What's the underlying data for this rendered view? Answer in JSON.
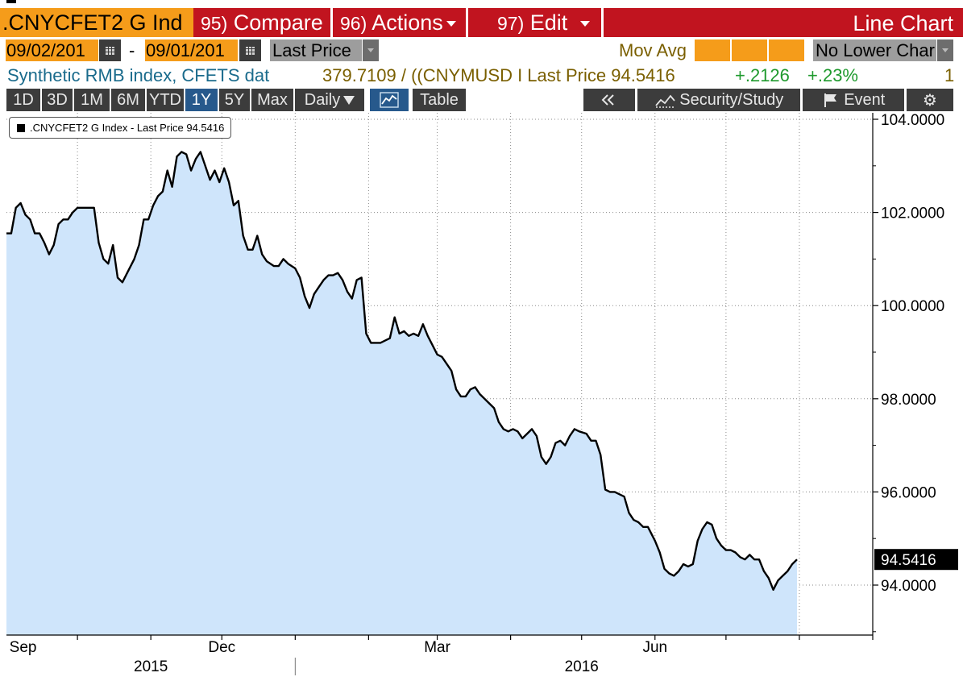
{
  "header": {
    "ticker": ".CNYCFET2 G Ind",
    "compare": {
      "num": "95)",
      "label": "Compare"
    },
    "actions": {
      "num": "96)",
      "label": "Actions"
    },
    "edit": {
      "num": "97)",
      "label": "Edit"
    },
    "title": "Line Chart"
  },
  "controls": {
    "start_date": "09/02/201",
    "end_date": "09/01/201",
    "date_separator": "-",
    "field": "Last Price",
    "mov_avg_label": "Mov Avg",
    "lower_chart": "No Lower Char"
  },
  "info": {
    "description": "Synthetic RMB index, CFETS dat",
    "formula": "379.7109 / ((CNYMUSD I Last Price 94.5416",
    "change": "+.2126",
    "change_pct": "+.23%",
    "count": "1"
  },
  "toolbar": {
    "periods": [
      "1D",
      "3D",
      "1M",
      "6M",
      "YTD",
      "1Y",
      "5Y",
      "Max"
    ],
    "active_period": "1Y",
    "frequency": "Daily",
    "table_label": "Table",
    "security_study": "Security/Study",
    "event": "Event",
    "icons": [
      "line-chart-icon",
      "double-chevron-left-icon",
      "mountain-chart-icon",
      "flag-icon",
      "gear-icon"
    ]
  },
  "colors": {
    "header_red": "#c1141f",
    "accent_orange": "#f59c1a",
    "area_fill": "#cfe5fb",
    "line": "#000000",
    "green": "#1f9a2e",
    "blue_text": "#1a6b8c"
  },
  "chart_data": {
    "type": "area",
    "legend": ".CNYCFET2 G Index - Last Price 94.5416",
    "last_value_label": "94.5416",
    "ylim": [
      92.9,
      104.2
    ],
    "yticks": [
      94,
      96,
      98,
      100,
      102,
      104
    ],
    "ytick_labels": [
      "94.0000",
      "96.0000",
      "98.0000",
      "100.0000",
      "102.0000",
      "104.0000"
    ],
    "x_start": "2015-09-01",
    "x_end": "2016-09-01",
    "month_labels": [
      {
        "label": "Sep",
        "date": "2015-09-08"
      },
      {
        "label": "Dec",
        "date": "2015-12-01"
      },
      {
        "label": "Mar",
        "date": "2016-03-01"
      },
      {
        "label": "Jun",
        "date": "2016-06-01"
      }
    ],
    "year_labels": [
      {
        "label": "2015",
        "date": "2015-11-01"
      },
      {
        "label": "2016",
        "date": "2016-05-01"
      }
    ],
    "year_divider_date": "2016-01-01",
    "gridline_dates": [
      "2015-10-01",
      "2015-11-01",
      "2015-12-01",
      "2016-01-01",
      "2016-02-01",
      "2016-03-01",
      "2016-04-01",
      "2016-05-01",
      "2016-06-01",
      "2016-07-01",
      "2016-08-01",
      "2016-09-01"
    ],
    "series": [
      {
        "values": [
          [
            "2015-09-01",
            101.55
          ],
          [
            "2015-09-03",
            101.55
          ],
          [
            "2015-09-05",
            102.1
          ],
          [
            "2015-09-07",
            102.2
          ],
          [
            "2015-09-09",
            101.95
          ],
          [
            "2015-09-11",
            101.85
          ],
          [
            "2015-09-13",
            101.55
          ],
          [
            "2015-09-15",
            101.55
          ],
          [
            "2015-09-17",
            101.35
          ],
          [
            "2015-09-19",
            101.1
          ],
          [
            "2015-09-21",
            101.3
          ],
          [
            "2015-09-23",
            101.75
          ],
          [
            "2015-09-25",
            101.85
          ],
          [
            "2015-09-27",
            101.85
          ],
          [
            "2015-09-29",
            102.0
          ],
          [
            "2015-10-01",
            102.1
          ],
          [
            "2015-10-03",
            102.1
          ],
          [
            "2015-10-06",
            102.1
          ],
          [
            "2015-10-08",
            102.1
          ],
          [
            "2015-10-10",
            101.35
          ],
          [
            "2015-10-12",
            101.0
          ],
          [
            "2015-10-14",
            100.9
          ],
          [
            "2015-10-16",
            101.3
          ],
          [
            "2015-10-18",
            100.6
          ],
          [
            "2015-10-20",
            100.5
          ],
          [
            "2015-10-22",
            100.7
          ],
          [
            "2015-10-25",
            101.0
          ],
          [
            "2015-10-27",
            101.3
          ],
          [
            "2015-10-29",
            101.85
          ],
          [
            "2015-10-31",
            101.85
          ],
          [
            "2015-11-02",
            102.15
          ],
          [
            "2015-11-04",
            102.35
          ],
          [
            "2015-11-06",
            102.45
          ],
          [
            "2015-11-08",
            102.9
          ],
          [
            "2015-11-10",
            102.55
          ],
          [
            "2015-11-12",
            103.2
          ],
          [
            "2015-11-14",
            103.3
          ],
          [
            "2015-11-16",
            103.25
          ],
          [
            "2015-11-18",
            102.9
          ],
          [
            "2015-11-20",
            103.15
          ],
          [
            "2015-11-22",
            103.3
          ],
          [
            "2015-11-24",
            103.0
          ],
          [
            "2015-11-26",
            102.7
          ],
          [
            "2015-11-28",
            102.9
          ],
          [
            "2015-11-30",
            102.65
          ],
          [
            "2015-12-02",
            102.95
          ],
          [
            "2015-12-04",
            102.65
          ],
          [
            "2015-12-06",
            102.15
          ],
          [
            "2015-12-08",
            102.25
          ],
          [
            "2015-12-10",
            101.5
          ],
          [
            "2015-12-12",
            101.2
          ],
          [
            "2015-12-14",
            101.2
          ],
          [
            "2015-12-16",
            101.5
          ],
          [
            "2015-12-18",
            101.1
          ],
          [
            "2015-12-20",
            100.95
          ],
          [
            "2015-12-23",
            100.85
          ],
          [
            "2015-12-25",
            100.85
          ],
          [
            "2015-12-27",
            101.0
          ],
          [
            "2015-12-29",
            100.9
          ],
          [
            "2016-01-01",
            100.8
          ],
          [
            "2016-01-03",
            100.6
          ],
          [
            "2016-01-05",
            100.2
          ],
          [
            "2016-01-07",
            99.95
          ],
          [
            "2016-01-09",
            100.25
          ],
          [
            "2016-01-11",
            100.4
          ],
          [
            "2016-01-13",
            100.55
          ],
          [
            "2016-01-15",
            100.65
          ],
          [
            "2016-01-17",
            100.65
          ],
          [
            "2016-01-19",
            100.7
          ],
          [
            "2016-01-21",
            100.55
          ],
          [
            "2016-01-23",
            100.3
          ],
          [
            "2016-01-25",
            100.15
          ],
          [
            "2016-01-27",
            100.55
          ],
          [
            "2016-01-29",
            100.6
          ],
          [
            "2016-01-31",
            99.4
          ],
          [
            "2016-02-02",
            99.2
          ],
          [
            "2016-02-04",
            99.2
          ],
          [
            "2016-02-06",
            99.2
          ],
          [
            "2016-02-08",
            99.25
          ],
          [
            "2016-02-10",
            99.3
          ],
          [
            "2016-02-12",
            99.75
          ],
          [
            "2016-02-14",
            99.4
          ],
          [
            "2016-02-16",
            99.45
          ],
          [
            "2016-02-18",
            99.35
          ],
          [
            "2016-02-20",
            99.4
          ],
          [
            "2016-02-22",
            99.35
          ],
          [
            "2016-02-24",
            99.6
          ],
          [
            "2016-02-26",
            99.35
          ],
          [
            "2016-02-28",
            99.15
          ],
          [
            "2016-03-01",
            98.95
          ],
          [
            "2016-03-03",
            98.9
          ],
          [
            "2016-03-05",
            98.75
          ],
          [
            "2016-03-07",
            98.6
          ],
          [
            "2016-03-09",
            98.2
          ],
          [
            "2016-03-11",
            98.05
          ],
          [
            "2016-03-13",
            98.05
          ],
          [
            "2016-03-15",
            98.2
          ],
          [
            "2016-03-17",
            98.25
          ],
          [
            "2016-03-19",
            98.1
          ],
          [
            "2016-03-21",
            98.0
          ],
          [
            "2016-03-23",
            97.9
          ],
          [
            "2016-03-25",
            97.8
          ],
          [
            "2016-03-27",
            97.5
          ],
          [
            "2016-03-29",
            97.35
          ],
          [
            "2016-03-31",
            97.3
          ],
          [
            "2016-04-02",
            97.35
          ],
          [
            "2016-04-04",
            97.3
          ],
          [
            "2016-04-06",
            97.15
          ],
          [
            "2016-04-08",
            97.25
          ],
          [
            "2016-04-10",
            97.35
          ],
          [
            "2016-04-12",
            97.2
          ],
          [
            "2016-04-14",
            96.75
          ],
          [
            "2016-04-16",
            96.6
          ],
          [
            "2016-04-18",
            96.75
          ],
          [
            "2016-04-20",
            97.05
          ],
          [
            "2016-04-22",
            97.1
          ],
          [
            "2016-04-24",
            97.0
          ],
          [
            "2016-04-26",
            97.2
          ],
          [
            "2016-04-28",
            97.35
          ],
          [
            "2016-04-30",
            97.3
          ],
          [
            "2016-05-03",
            97.25
          ],
          [
            "2016-05-05",
            97.1
          ],
          [
            "2016-05-07",
            97.1
          ],
          [
            "2016-05-09",
            96.8
          ],
          [
            "2016-05-11",
            96.05
          ],
          [
            "2016-05-13",
            96.0
          ],
          [
            "2016-05-15",
            96.0
          ],
          [
            "2016-05-17",
            95.95
          ],
          [
            "2016-05-19",
            95.9
          ],
          [
            "2016-05-21",
            95.55
          ],
          [
            "2016-05-23",
            95.4
          ],
          [
            "2016-05-25",
            95.35
          ],
          [
            "2016-05-27",
            95.25
          ],
          [
            "2016-05-29",
            95.25
          ],
          [
            "2016-06-01",
            94.95
          ],
          [
            "2016-06-03",
            94.7
          ],
          [
            "2016-06-05",
            94.35
          ],
          [
            "2016-06-07",
            94.25
          ],
          [
            "2016-06-09",
            94.2
          ],
          [
            "2016-06-11",
            94.3
          ],
          [
            "2016-06-13",
            94.45
          ],
          [
            "2016-06-15",
            94.4
          ],
          [
            "2016-06-17",
            94.45
          ],
          [
            "2016-06-19",
            94.95
          ],
          [
            "2016-06-21",
            95.2
          ],
          [
            "2016-06-23",
            95.35
          ],
          [
            "2016-06-25",
            95.3
          ],
          [
            "2016-06-27",
            95.0
          ],
          [
            "2016-06-29",
            94.85
          ],
          [
            "2016-07-01",
            94.75
          ],
          [
            "2016-07-03",
            94.75
          ],
          [
            "2016-07-05",
            94.7
          ],
          [
            "2016-07-07",
            94.6
          ],
          [
            "2016-07-09",
            94.55
          ],
          [
            "2016-07-11",
            94.65
          ],
          [
            "2016-07-13",
            94.55
          ],
          [
            "2016-07-15",
            94.55
          ],
          [
            "2016-07-17",
            94.3
          ],
          [
            "2016-07-19",
            94.15
          ],
          [
            "2016-07-21",
            93.9
          ],
          [
            "2016-07-23",
            94.1
          ],
          [
            "2016-07-25",
            94.2
          ],
          [
            "2016-07-27",
            94.3
          ],
          [
            "2016-07-29",
            94.45
          ],
          [
            "2016-07-31",
            94.55
          ]
        ]
      }
    ]
  }
}
